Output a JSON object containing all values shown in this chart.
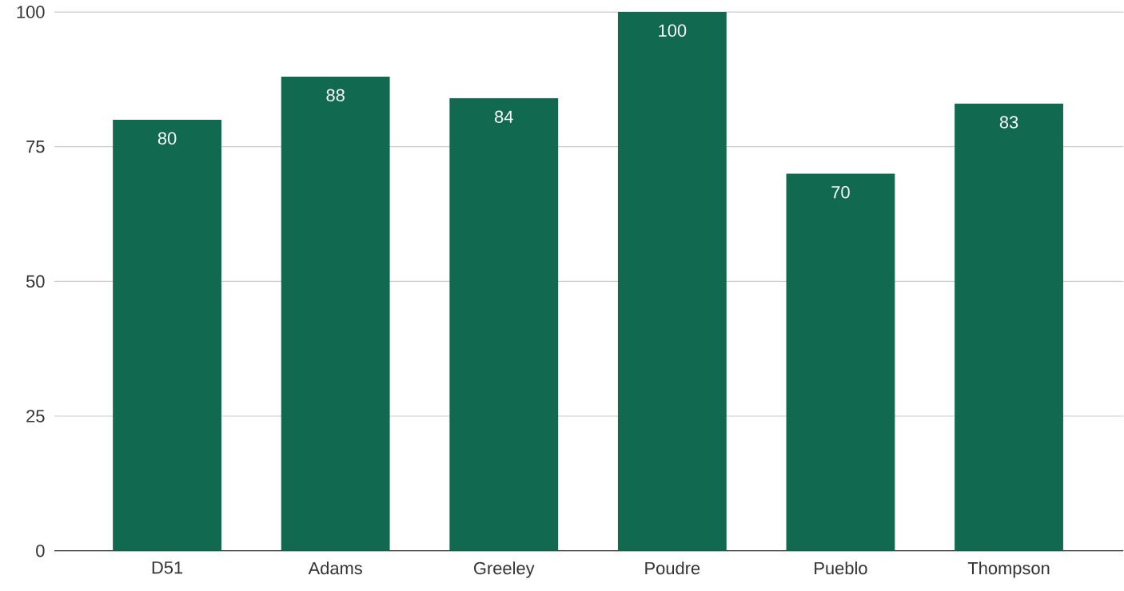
{
  "chart_data": {
    "type": "bar",
    "categories": [
      "D51",
      "Adams",
      "Greeley",
      "Poudre",
      "Pueblo",
      "Thompson"
    ],
    "values": [
      80,
      88,
      84,
      100,
      70,
      83
    ],
    "color": "#116a50",
    "ylim": [
      0,
      100
    ],
    "yticks": [
      0,
      25,
      50,
      75,
      100
    ],
    "grid": "y",
    "data_labels": true
  }
}
